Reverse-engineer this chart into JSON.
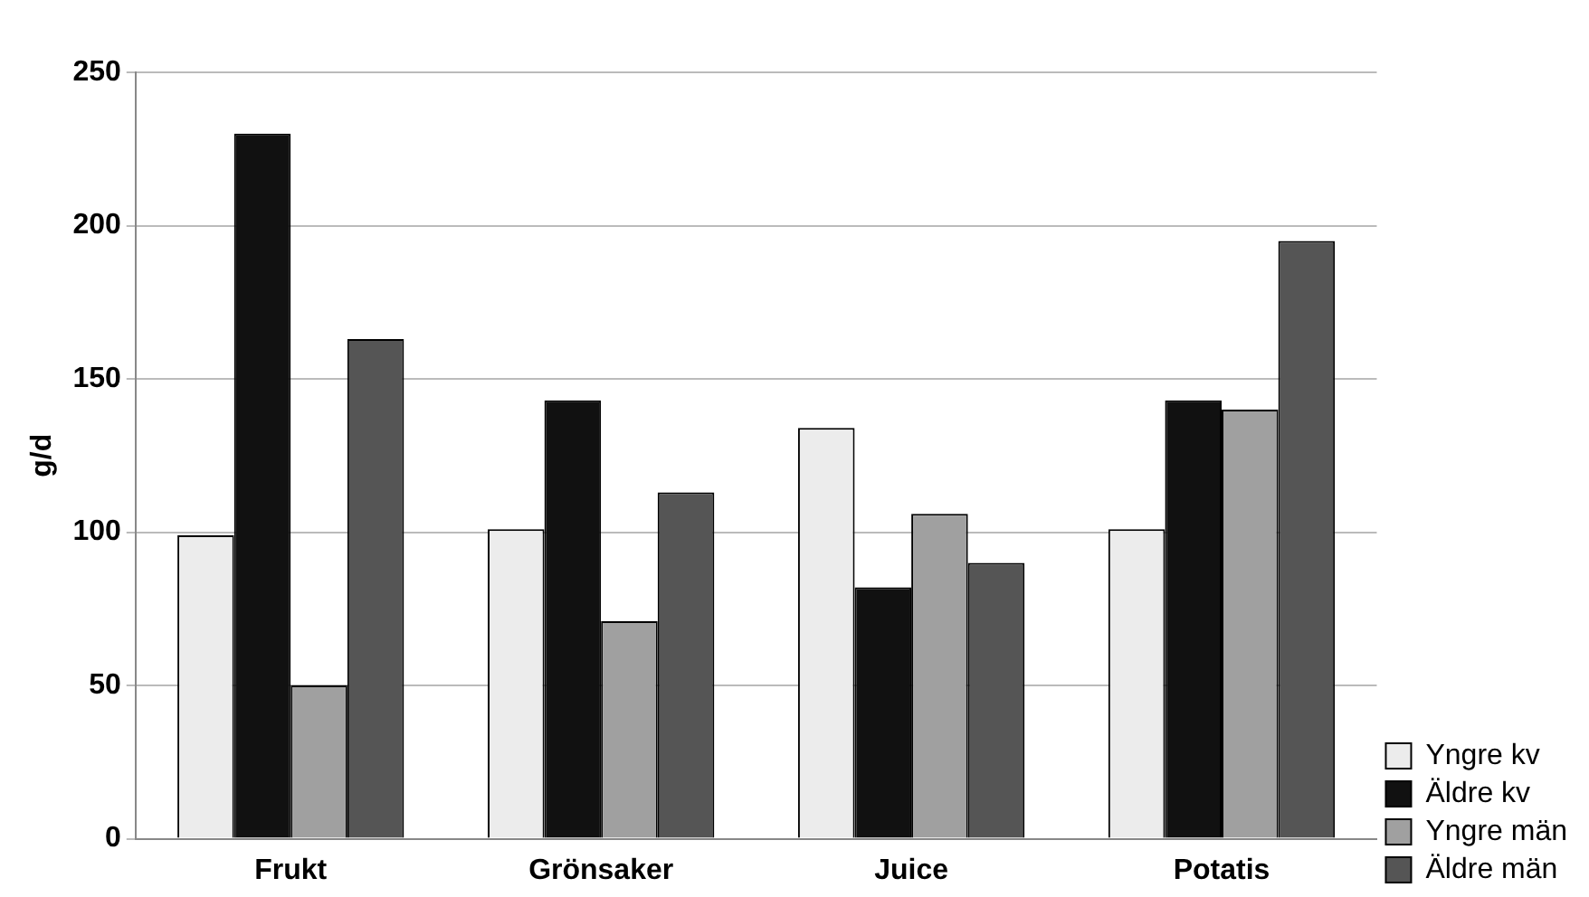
{
  "chart_data": {
    "type": "bar",
    "ylabel": "g/d",
    "categories": [
      "Frukt",
      "Grönsaker",
      "Juice",
      "Potatis"
    ],
    "series": [
      {
        "name": "Yngre kv",
        "color": "#ececec",
        "values": [
          99,
          101,
          134,
          101
        ]
      },
      {
        "name": "Äldre kv",
        "color": "#111111",
        "values": [
          230,
          143,
          82,
          143
        ]
      },
      {
        "name": "Yngre män",
        "color": "#a0a0a0",
        "values": [
          50,
          71,
          106,
          140
        ]
      },
      {
        "name": "Äldre män",
        "color": "#555555",
        "values": [
          163,
          113,
          90,
          195
        ]
      }
    ],
    "ylim": [
      0,
      250
    ],
    "yticks": [
      0,
      50,
      100,
      150,
      200,
      250
    ],
    "grid": "y",
    "legend": "right"
  }
}
